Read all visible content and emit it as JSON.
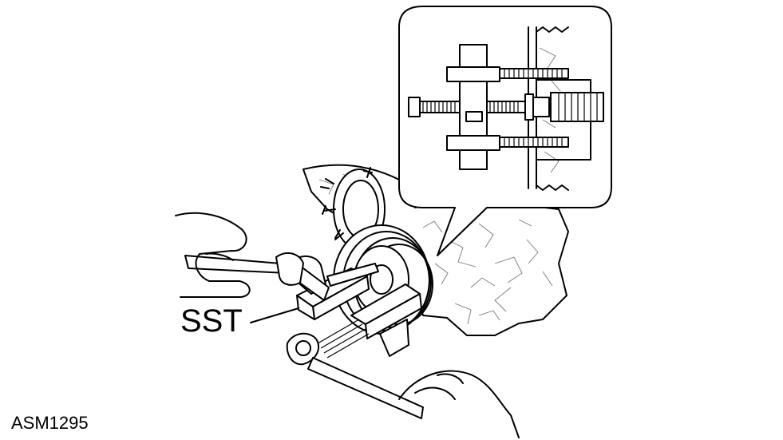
{
  "labels": {
    "special_tool": "SST",
    "figure_code": "ASM1295"
  },
  "colors": {
    "line": "#000000",
    "background": "#ffffff"
  }
}
